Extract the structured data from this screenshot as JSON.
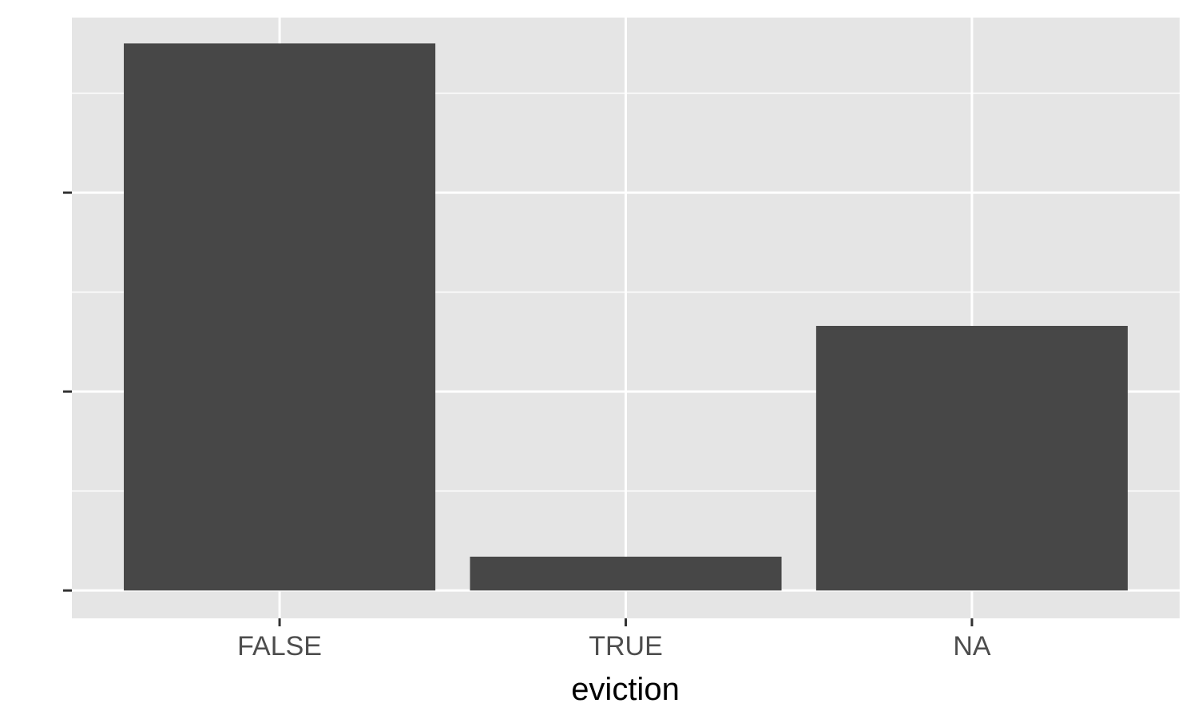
{
  "chart_data": {
    "type": "bar",
    "categories": [
      "FALSE",
      "TRUE",
      "NA"
    ],
    "values": [
      2.75,
      0.17,
      1.33
    ],
    "xlabel": "eviction",
    "ylabel": "",
    "ylim": [
      -0.14,
      2.88
    ],
    "y_major_ticks": [
      0,
      1,
      2
    ],
    "y_tick_labels_visible": false,
    "grid": true,
    "legend": "none",
    "colors": {
      "panel_background": "#e5e5e5",
      "grid": "#ffffff",
      "bar": "#474747",
      "axis_ticks": "#333333",
      "tick_label": "#4d4d4d",
      "axis_title": "#000000"
    }
  }
}
